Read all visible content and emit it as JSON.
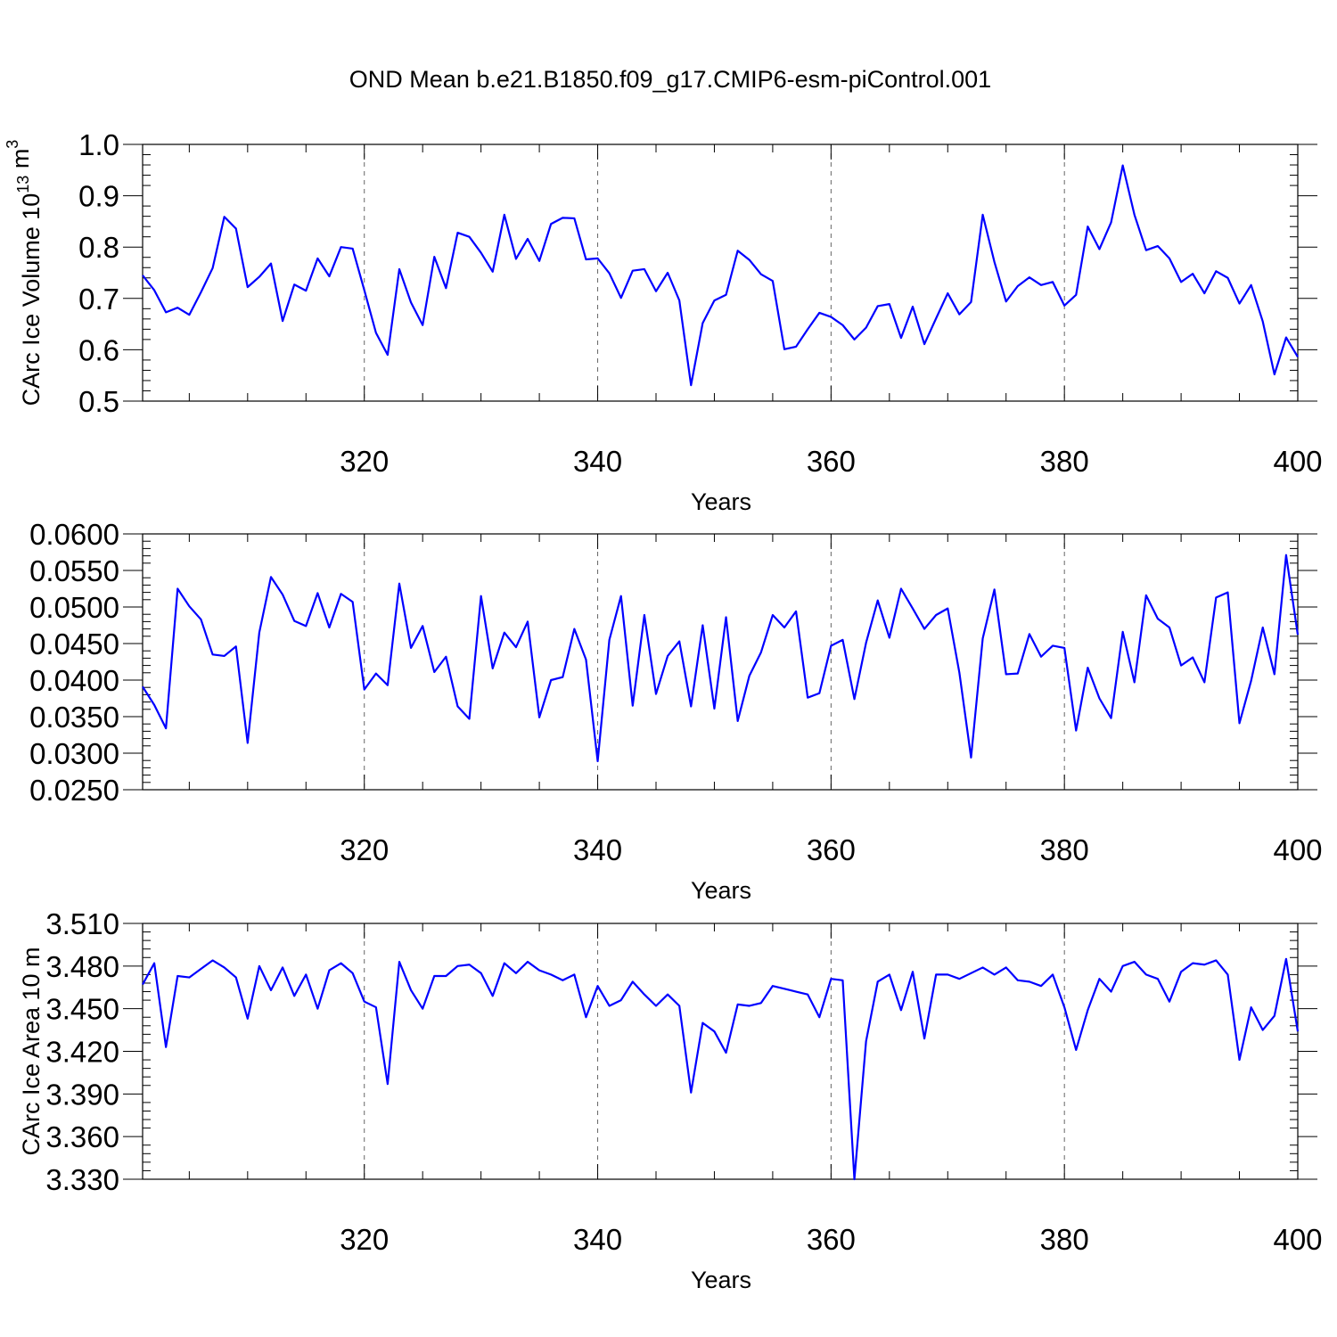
{
  "title": "OND Mean b.e21.B1850.f09_g17.CMIP6-esm-piControl.001",
  "colors": {
    "line": "#0000ff",
    "axis": "#000000",
    "grid": "#666666"
  },
  "chart_data": [
    {
      "type": "line",
      "name": "ice-volume",
      "title": "",
      "xlabel": "Years",
      "ylabel_parts": [
        "CArc Ice Volume 10",
        "13",
        " m",
        "3"
      ],
      "xlim": [
        301,
        400
      ],
      "ylim": [
        0.5,
        1.0
      ],
      "xticks": [
        320,
        340,
        360,
        380,
        400
      ],
      "yticks": [
        0.5,
        0.6,
        0.7,
        0.8,
        0.9,
        1.0
      ],
      "ytick_labels": [
        "0.5",
        "0.6",
        "0.7",
        "0.8",
        "0.9",
        "1.0"
      ],
      "x_start": 301,
      "values": [
        0.745,
        0.716,
        0.673,
        0.682,
        0.668,
        0.712,
        0.759,
        0.859,
        0.836,
        0.722,
        0.742,
        0.768,
        0.656,
        0.727,
        0.715,
        0.778,
        0.743,
        0.8,
        0.797,
        0.716,
        0.633,
        0.59,
        0.757,
        0.692,
        0.648,
        0.781,
        0.72,
        0.828,
        0.82,
        0.789,
        0.752,
        0.863,
        0.777,
        0.816,
        0.773,
        0.845,
        0.857,
        0.856,
        0.776,
        0.778,
        0.749,
        0.701,
        0.754,
        0.757,
        0.714,
        0.75,
        0.696,
        0.531,
        0.652,
        0.696,
        0.707,
        0.793,
        0.775,
        0.747,
        0.734,
        0.601,
        0.606,
        0.64,
        0.672,
        0.664,
        0.648,
        0.62,
        0.643,
        0.685,
        0.689,
        0.623,
        0.684,
        0.611,
        0.661,
        0.71,
        0.669,
        0.693,
        0.863,
        0.771,
        0.694,
        0.724,
        0.741,
        0.726,
        0.732,
        0.686,
        0.707,
        0.84,
        0.796,
        0.848,
        0.959,
        0.863,
        0.794,
        0.802,
        0.778,
        0.732,
        0.748,
        0.71,
        0.753,
        0.74,
        0.69,
        0.726,
        0.655,
        0.552,
        0.624,
        0.586
      ]
    },
    {
      "type": "line",
      "name": "middle-series",
      "title": "",
      "xlabel": "Years",
      "ylabel_parts": [],
      "xlim": [
        301,
        400
      ],
      "ylim": [
        0.025,
        0.06
      ],
      "xticks": [
        320,
        340,
        360,
        380,
        400
      ],
      "yticks": [
        0.025,
        0.03,
        0.035,
        0.04,
        0.045,
        0.05,
        0.055,
        0.06
      ],
      "ytick_labels": [
        "0.0250",
        "0.0300",
        "0.0350",
        "0.0400",
        "0.0450",
        "0.0500",
        "0.0550",
        "0.0600"
      ],
      "x_start": 301,
      "values": [
        0.0391,
        0.0366,
        0.0334,
        0.0525,
        0.0501,
        0.0483,
        0.0435,
        0.0433,
        0.0446,
        0.0314,
        0.0465,
        0.0541,
        0.0517,
        0.0481,
        0.0474,
        0.0519,
        0.0472,
        0.0518,
        0.0507,
        0.0387,
        0.0409,
        0.0393,
        0.0532,
        0.0444,
        0.0474,
        0.0411,
        0.0432,
        0.0364,
        0.0347,
        0.0515,
        0.0416,
        0.0465,
        0.0445,
        0.048,
        0.0349,
        0.04,
        0.0404,
        0.047,
        0.0428,
        0.0289,
        0.0455,
        0.0515,
        0.0365,
        0.0489,
        0.0381,
        0.0433,
        0.0453,
        0.0364,
        0.0475,
        0.0361,
        0.0486,
        0.0344,
        0.0406,
        0.0438,
        0.0489,
        0.0472,
        0.0494,
        0.0376,
        0.0382,
        0.0447,
        0.0455,
        0.0374,
        0.0451,
        0.0509,
        0.0458,
        0.0525,
        0.0498,
        0.047,
        0.0489,
        0.0498,
        0.041,
        0.0294,
        0.0457,
        0.0524,
        0.0408,
        0.0409,
        0.0463,
        0.0432,
        0.0447,
        0.0444,
        0.0331,
        0.0417,
        0.0375,
        0.0348,
        0.0466,
        0.0397,
        0.0516,
        0.0484,
        0.0472,
        0.042,
        0.0431,
        0.0397,
        0.0513,
        0.052,
        0.0341,
        0.0399,
        0.0472,
        0.0408,
        0.0571,
        0.0462
      ]
    },
    {
      "type": "line",
      "name": "ice-area",
      "title": "",
      "xlabel": "Years",
      "ylabel_parts": [
        "CArc Ice Area 10",
        "",
        " m",
        ""
      ],
      "xlim": [
        301,
        400
      ],
      "ylim": [
        3.33,
        3.51
      ],
      "xticks": [
        320,
        340,
        360,
        380,
        400
      ],
      "yticks": [
        3.33,
        3.36,
        3.39,
        3.42,
        3.45,
        3.48,
        3.51
      ],
      "ytick_labels": [
        "3.330",
        "3.360",
        "3.390",
        "3.420",
        "3.450",
        "3.480",
        "3.510"
      ],
      "x_start": 301,
      "values": [
        3.467,
        3.482,
        3.423,
        3.473,
        3.472,
        3.478,
        3.484,
        3.479,
        3.472,
        3.443,
        3.48,
        3.463,
        3.479,
        3.459,
        3.474,
        3.45,
        3.477,
        3.482,
        3.475,
        3.455,
        3.451,
        3.397,
        3.483,
        3.463,
        3.45,
        3.473,
        3.473,
        3.48,
        3.481,
        3.475,
        3.459,
        3.482,
        3.475,
        3.483,
        3.477,
        3.474,
        3.47,
        3.474,
        3.444,
        3.466,
        3.452,
        3.456,
        3.469,
        3.46,
        3.452,
        3.46,
        3.452,
        3.391,
        3.44,
        3.434,
        3.419,
        3.453,
        3.452,
        3.454,
        3.466,
        3.464,
        3.462,
        3.46,
        3.444,
        3.471,
        3.47,
        3.33,
        3.427,
        3.469,
        3.474,
        3.449,
        3.476,
        3.429,
        3.474,
        3.474,
        3.471,
        3.475,
        3.479,
        3.474,
        3.479,
        3.47,
        3.469,
        3.466,
        3.474,
        3.451,
        3.421,
        3.449,
        3.471,
        3.462,
        3.48,
        3.483,
        3.474,
        3.471,
        3.455,
        3.476,
        3.482,
        3.481,
        3.484,
        3.474,
        3.414,
        3.451,
        3.435,
        3.445,
        3.485,
        3.434
      ]
    }
  ]
}
